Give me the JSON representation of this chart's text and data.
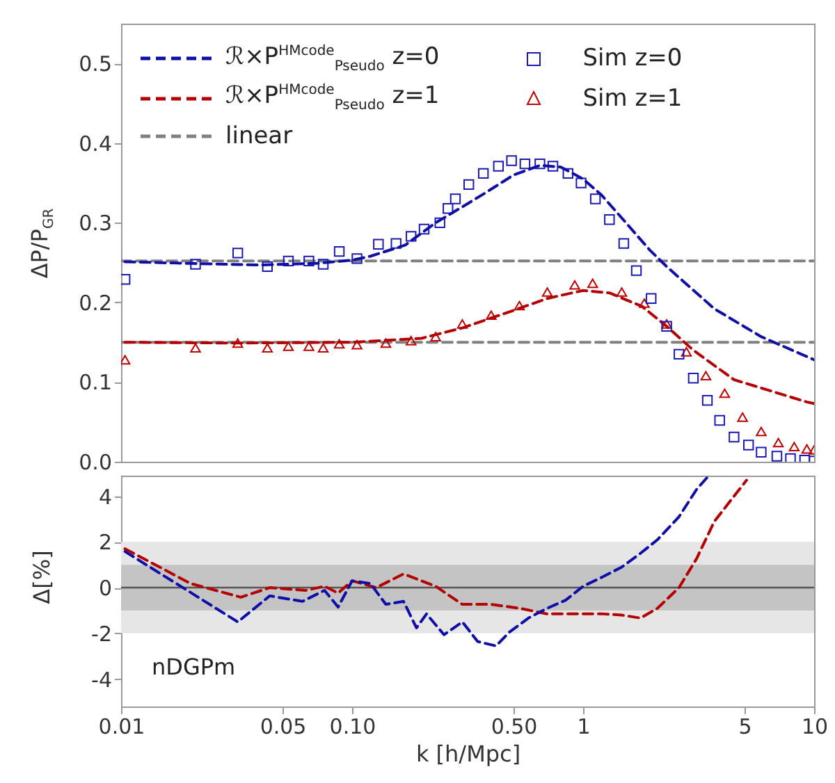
{
  "chart_data": [
    {
      "type": "line",
      "ylabel": "ΔP/P$_{GR}$",
      "log": "x",
      "xlim": [
        0.01,
        10
      ],
      "ylim": [
        0,
        0.55
      ],
      "yticks": [
        {
          "value": 0,
          "label": "0.0"
        },
        0.1,
        0.2,
        0.3,
        0.4,
        0.5
      ],
      "tick_labels": "y",
      "legend": "top left",
      "grid": false,
      "series": [
        {
          "name": "ℛ×P$^{HMcode}$$_{Pseudo}$ z=0",
          "type": "line",
          "line_style": "dashed",
          "color": "#0f0fa8",
          "x": [
            0.0104,
            0.02,
            0.04,
            0.07,
            0.1,
            0.12,
            0.17,
            0.23,
            0.3,
            0.37,
            0.5,
            0.65,
            0.8,
            1.0,
            1.2,
            1.47,
            1.94,
            2.3,
            3.7,
            5.9,
            10
          ],
          "values": [
            0.251,
            0.249,
            0.247,
            0.249,
            0.253,
            0.258,
            0.272,
            0.3,
            0.32,
            0.336,
            0.36,
            0.372,
            0.37,
            0.355,
            0.335,
            0.306,
            0.266,
            0.245,
            0.192,
            0.157,
            0.128
          ]
        },
        {
          "name": "Sim z=0",
          "type": "scatter",
          "marker": "square",
          "color": "#1a1ab4",
          "x": [
            0.0104,
            0.021,
            0.032,
            0.043,
            0.053,
            0.065,
            0.075,
            0.088,
            0.105,
            0.13,
            0.155,
            0.18,
            0.205,
            0.24,
            0.26,
            0.28,
            0.32,
            0.37,
            0.43,
            0.49,
            0.56,
            0.65,
            0.74,
            0.86,
            0.98,
            1.13,
            1.3,
            1.5,
            1.7,
            1.97,
            2.3,
            2.6,
            3.0,
            3.45,
            3.9,
            4.5,
            5.2,
            5.9,
            6.9,
            7.9,
            9.1,
            10
          ],
          "values": [
            0.229,
            0.248,
            0.262,
            0.245,
            0.252,
            0.252,
            0.248,
            0.264,
            0.255,
            0.273,
            0.274,
            0.283,
            0.292,
            0.3,
            0.318,
            0.33,
            0.348,
            0.362,
            0.371,
            0.378,
            0.374,
            0.374,
            0.371,
            0.362,
            0.35,
            0.33,
            0.304,
            0.274,
            0.24,
            0.205,
            0.17,
            0.135,
            0.105,
            0.077,
            0.052,
            0.031,
            0.021,
            0.012,
            0.007,
            0.004,
            0.002,
            0.001
          ]
        },
        {
          "name": "ℛ×P$^{HMcode}$$_{Pseudo}$ z=1",
          "type": "line",
          "line_style": "dashed",
          "color": "#b40000",
          "x": [
            0.0104,
            0.03,
            0.1,
            0.2,
            0.3,
            0.5,
            0.7,
            1.0,
            1.3,
            1.8,
            2.3,
            3.0,
            4.5,
            9.3,
            10
          ],
          "values": [
            0.15,
            0.149,
            0.15,
            0.155,
            0.168,
            0.19,
            0.205,
            0.215,
            0.212,
            0.195,
            0.17,
            0.14,
            0.103,
            0.075,
            0.073
          ]
        },
        {
          "name": "Sim z=1",
          "type": "scatter",
          "marker": "triangle",
          "color": "#c00000",
          "x": [
            0.0104,
            0.021,
            0.032,
            0.043,
            0.053,
            0.065,
            0.075,
            0.088,
            0.105,
            0.14,
            0.18,
            0.23,
            0.3,
            0.4,
            0.53,
            0.7,
            0.92,
            1.1,
            1.47,
            1.84,
            2.3,
            2.8,
            3.4,
            4.1,
            4.9,
            5.9,
            7.0,
            8.2,
            9.3,
            10
          ],
          "values": [
            0.128,
            0.143,
            0.149,
            0.143,
            0.145,
            0.145,
            0.143,
            0.148,
            0.147,
            0.149,
            0.152,
            0.157,
            0.173,
            0.184,
            0.196,
            0.213,
            0.222,
            0.224,
            0.213,
            0.199,
            0.173,
            0.138,
            0.108,
            0.086,
            0.056,
            0.038,
            0.024,
            0.019,
            0.016,
            0.015
          ]
        },
        {
          "name": "linear",
          "type": "line",
          "line_style": "dashed",
          "color": "#808080",
          "x": [
            0.01,
            10
          ],
          "values": [
            0.252,
            0.252
          ]
        },
        {
          "type": "line",
          "line_style": "dashed",
          "color": "#808080",
          "x": [
            0.01,
            10
          ],
          "values": [
            0.15,
            0.15
          ]
        }
      ]
    },
    {
      "type": "line",
      "ylabel": "Δ[%]",
      "xlabel": "k [h/Mpc]",
      "log": "x",
      "xlim": [
        0.01,
        10
      ],
      "ylim": [
        -5.2,
        4.9
      ],
      "yticks": [
        -4,
        -2,
        0,
        2,
        4
      ],
      "xticks": [
        0.01,
        0.05,
        {
          "value": 0.1,
          "label": "0.10"
        },
        {
          "value": 0.5,
          "label": "0.50"
        },
        1,
        5,
        10
      ],
      "grid": false,
      "annotations": [
        "nDGPm"
      ],
      "bands": [
        {
          "axis": "y",
          "from": -2,
          "to": 2,
          "color": "#e6e6e6"
        },
        {
          "axis": "y",
          "from": -1,
          "to": 1,
          "color": "#c4c4c4"
        }
      ],
      "ref_lines": [
        {
          "axis": "y",
          "value": 0,
          "color": "#555555"
        }
      ],
      "series": [
        {
          "type": "line",
          "line_style": "dashed",
          "color": "#0f0fa8",
          "x": [
            0.0104,
            0.032,
            0.044,
            0.061,
            0.076,
            0.087,
            0.1,
            0.12,
            0.14,
            0.167,
            0.19,
            0.21,
            0.25,
            0.3,
            0.35,
            0.42,
            0.48,
            0.58,
            0.7,
            0.84,
            1.0,
            1.22,
            1.47,
            1.77,
            2.1,
            2.6,
            3.1,
            3.5
          ],
          "values": [
            1.58,
            -1.5,
            -0.36,
            -0.6,
            -0.12,
            -0.85,
            0.3,
            0.18,
            -0.73,
            -0.6,
            -1.76,
            -1.15,
            -2.06,
            -1.5,
            -2.36,
            -2.55,
            -1.94,
            -1.33,
            -0.9,
            -0.55,
            0.06,
            0.48,
            0.9,
            1.5,
            2.1,
            3.1,
            4.3,
            4.9
          ]
        },
        {
          "type": "line",
          "line_style": "dashed",
          "color": "#b40000",
          "x": [
            0.0104,
            0.02,
            0.033,
            0.044,
            0.063,
            0.076,
            0.087,
            0.1,
            0.127,
            0.167,
            0.23,
            0.3,
            0.4,
            0.53,
            0.7,
            0.92,
            1.22,
            1.47,
            1.77,
            2.1,
            2.6,
            3.1,
            3.7,
            4.5,
            5.1
          ],
          "values": [
            1.7,
            0.18,
            -0.42,
            0,
            -0.12,
            0.06,
            -0.24,
            0.3,
            0,
            0.6,
            0.06,
            -0.73,
            -0.73,
            -0.9,
            -1.15,
            -1.15,
            -1.15,
            -1.2,
            -1.33,
            -0.9,
            0,
            1.27,
            2.9,
            4.0,
            4.7
          ]
        }
      ]
    }
  ]
}
